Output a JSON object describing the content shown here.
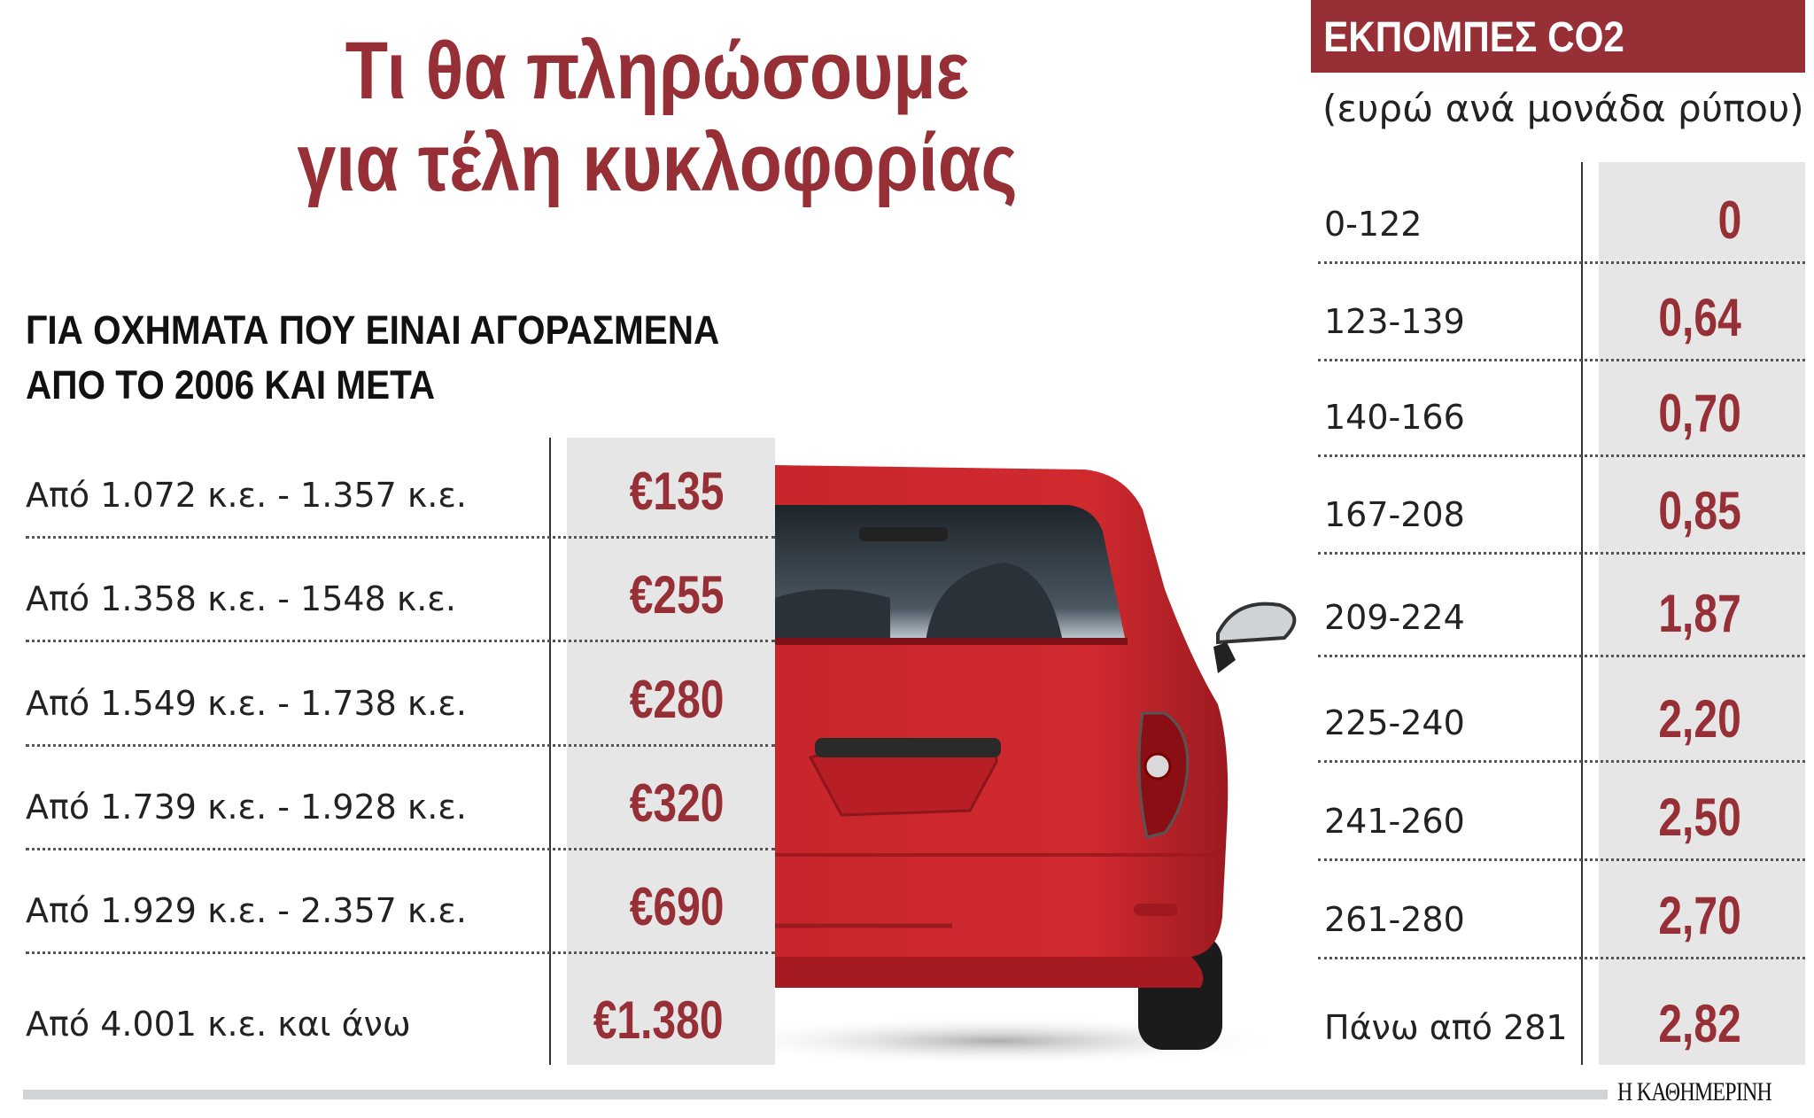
{
  "title": {
    "line1": "Τι θα πληρώσουμε",
    "line2": "για τέλη κυκλοφορίας"
  },
  "subtitle": {
    "line1": "ΓΙΑ ΟΧΗΜΑΤΑ ΠΟΥ ΕΙΝΑΙ ΑΓΟΡΑΣΜΕΝΑ",
    "line2": "ΑΠΟ ΤΟ 2006 ΚΑΙ ΜΕΤΑ"
  },
  "engine_table": [
    {
      "label": "Από 1.072 κ.ε. - 1.357 κ.ε.",
      "value": "€135"
    },
    {
      "label": "Από 1.358 κ.ε. - 1548 κ.ε.",
      "value": "€255"
    },
    {
      "label": "Από 1.549 κ.ε. - 1.738 κ.ε.",
      "value": "€280"
    },
    {
      "label": "Από 1.739 κ.ε. - 1.928 κ.ε.",
      "value": "€320"
    },
    {
      "label": "Από 1.929 κ.ε. - 2.357 κ.ε.",
      "value": "€690"
    },
    {
      "label": "Από 4.001 κ.ε. και άνω",
      "value": "€1.380"
    }
  ],
  "co2": {
    "header": "ΕΚΠΟΜΠΕΣ CO2",
    "unit": "(ευρώ ανά μονάδα ρύπου)",
    "rows": [
      {
        "label": "0-122",
        "value": "0"
      },
      {
        "label": "123-139",
        "value": "0,64"
      },
      {
        "label": "140-166",
        "value": "0,70"
      },
      {
        "label": "167-208",
        "value": "0,85"
      },
      {
        "label": "209-224",
        "value": "1,87"
      },
      {
        "label": "225-240",
        "value": "2,20"
      },
      {
        "label": "241-260",
        "value": "2,50"
      },
      {
        "label": "261-280",
        "value": "2,70"
      },
      {
        "label": "Πάνω από 281",
        "value": "2,82"
      }
    ]
  },
  "footer": {
    "logo": "Η ΚΑΘΗΜΕΡΙΝΗ"
  },
  "colors": {
    "accent": "#962f36",
    "cell_bg": "#e6e6e7",
    "car": "#c4232a"
  }
}
